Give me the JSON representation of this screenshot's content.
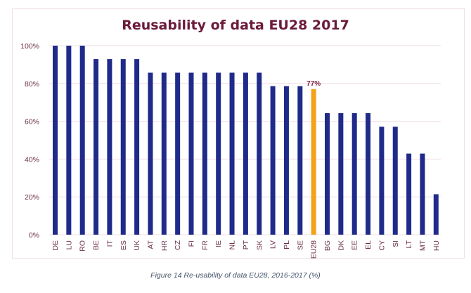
{
  "chart_data": {
    "type": "bar",
    "title": "Reusability of data EU28 2017",
    "xlabel": "",
    "ylabel": "",
    "ylim": [
      0,
      100
    ],
    "yticks": [
      "0%",
      "20%",
      "40%",
      "60%",
      "80%",
      "100%"
    ],
    "ytick_values": [
      0,
      20,
      40,
      60,
      80,
      100
    ],
    "grid": true,
    "legend": "none",
    "categories": [
      "DE",
      "LU",
      "RO",
      "BE",
      "IT",
      "ES",
      "UK",
      "AT",
      "HR",
      "CZ",
      "FI",
      "FR",
      "IE",
      "NL",
      "PT",
      "SK",
      "LV",
      "PL",
      "SE",
      "EU28",
      "BG",
      "DK",
      "EE",
      "EL",
      "CY",
      "SI",
      "LT",
      "MT",
      "HU"
    ],
    "values": [
      100,
      100,
      100,
      92.9,
      92.9,
      92.9,
      92.9,
      85.7,
      85.7,
      85.7,
      85.7,
      85.7,
      85.7,
      85.7,
      85.7,
      85.7,
      78.6,
      78.6,
      78.6,
      77,
      64.3,
      64.3,
      64.3,
      64.3,
      57.1,
      57.1,
      42.9,
      42.9,
      21.4
    ],
    "highlight": {
      "category": "EU28",
      "label": "77%",
      "color": "#f5a21b"
    },
    "bar_color": "#1f2a8a",
    "gridline_color": "#f0dde3"
  },
  "caption": "Figure 14 Re-usability of data EU28, 2016-2017 (%)"
}
